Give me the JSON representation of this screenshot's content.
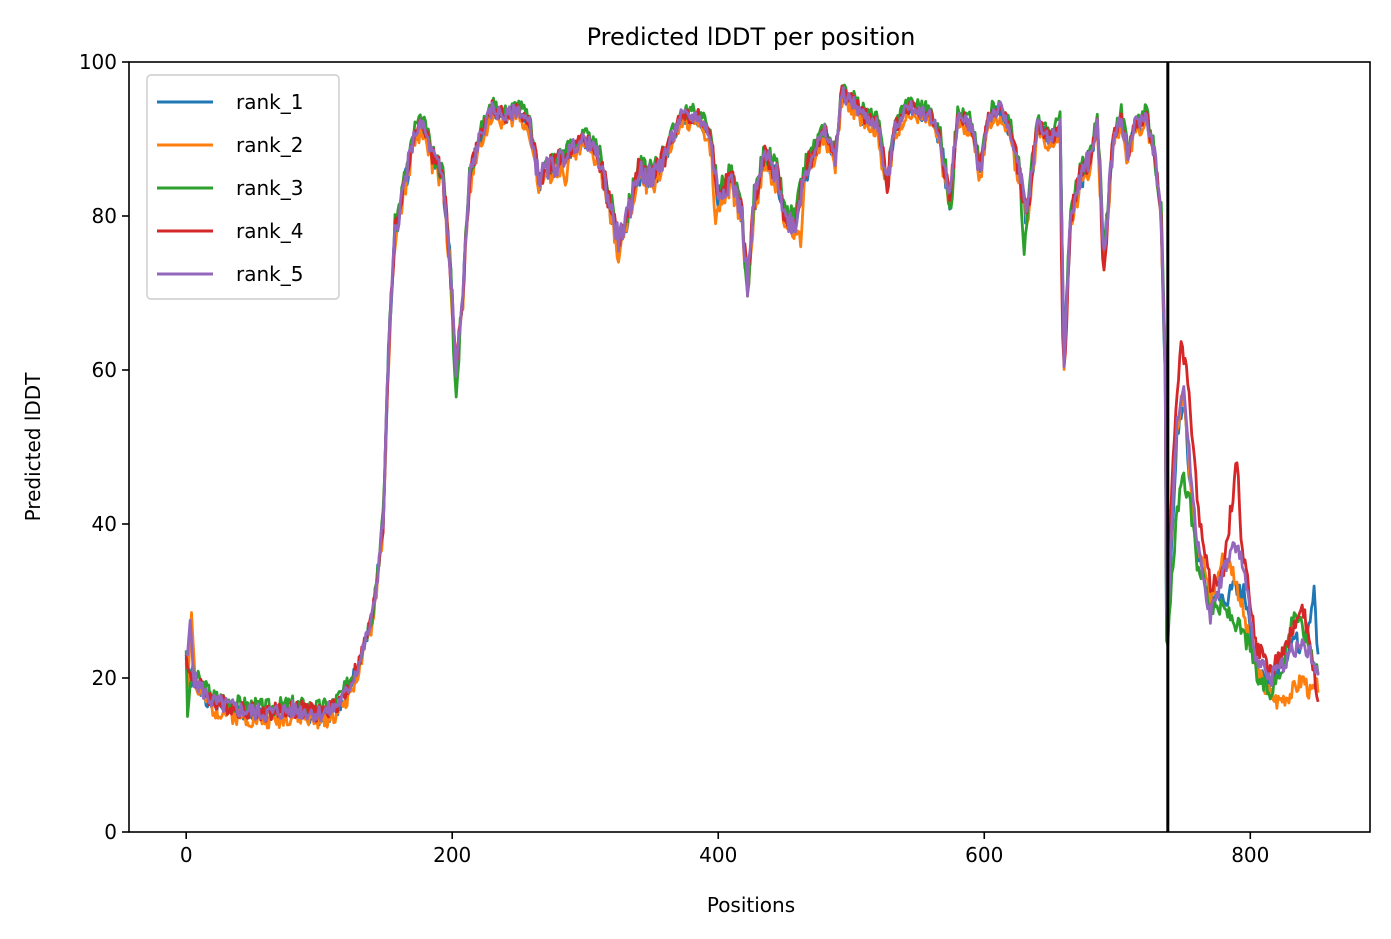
{
  "chart_data": {
    "type": "line",
    "title": "Predicted lDDT per position",
    "xlabel": "Positions",
    "ylabel": "Predicted lDDT",
    "xlim": [
      -43,
      890
    ],
    "ylim": [
      0,
      100
    ],
    "xticks": [
      0,
      200,
      400,
      600,
      800
    ],
    "yticks": [
      0,
      20,
      40,
      60,
      80,
      100
    ],
    "legend_position": "top-left",
    "grid": false,
    "chain_break_x": 738,
    "series": [
      {
        "name": "rank_1",
        "color": "#1f77b4",
        "offset": -0.4,
        "sharp": [],
        "seed": 1,
        "tail": [
          [
            738,
            25
          ],
          [
            741,
            38
          ],
          [
            745,
            52
          ],
          [
            750,
            56
          ],
          [
            755,
            45
          ],
          [
            760,
            37
          ],
          [
            765,
            33
          ],
          [
            770,
            30
          ],
          [
            780,
            30
          ],
          [
            790,
            32
          ],
          [
            795,
            31
          ],
          [
            800,
            26
          ],
          [
            805,
            21
          ],
          [
            815,
            20
          ],
          [
            825,
            22
          ],
          [
            833,
            25
          ],
          [
            840,
            24
          ],
          [
            845,
            27
          ],
          [
            848,
            31
          ],
          [
            851,
            22
          ]
        ]
      },
      {
        "name": "rank_2",
        "color": "#ff7f0e",
        "offset": -1.0,
        "sharp": [
          [
            4,
            28.5
          ],
          [
            285,
            84
          ],
          [
            325,
            74
          ],
          [
            398,
            79
          ],
          [
            462,
            76
          ]
        ],
        "seed": 2,
        "tail": [
          [
            738,
            30
          ],
          [
            741,
            40
          ],
          [
            745,
            53
          ],
          [
            750,
            57
          ],
          [
            755,
            46
          ],
          [
            760,
            38
          ],
          [
            765,
            35
          ],
          [
            770,
            30
          ],
          [
            780,
            36
          ],
          [
            787,
            34
          ],
          [
            793,
            30
          ],
          [
            800,
            24
          ],
          [
            810,
            19
          ],
          [
            820,
            17
          ],
          [
            830,
            18
          ],
          [
            840,
            20
          ],
          [
            845,
            18
          ],
          [
            851,
            19
          ]
        ]
      },
      {
        "name": "rank_3",
        "color": "#2ca02c",
        "offset": 0.6,
        "sharp": [
          [
            1,
            15
          ],
          [
            203,
            56.5
          ],
          [
            422,
            70
          ],
          [
            630,
            75
          ],
          [
            575,
            81
          ]
        ],
        "seed": 3,
        "tail": [
          [
            738,
            24
          ],
          [
            741,
            33
          ],
          [
            745,
            42
          ],
          [
            750,
            46
          ],
          [
            755,
            42
          ],
          [
            760,
            35
          ],
          [
            765,
            33
          ],
          [
            770,
            29
          ],
          [
            780,
            29
          ],
          [
            790,
            27
          ],
          [
            800,
            24
          ],
          [
            805,
            20
          ],
          [
            815,
            18
          ],
          [
            825,
            22
          ],
          [
            833,
            29
          ],
          [
            840,
            26
          ],
          [
            845,
            24
          ],
          [
            851,
            21
          ]
        ]
      },
      {
        "name": "rank_4",
        "color": "#d62728",
        "offset": 0.0,
        "sharp": [
          [
            660,
            60.5
          ],
          [
            690,
            73
          ]
        ],
        "seed": 4,
        "tail": [
          [
            738,
            32
          ],
          [
            741,
            45
          ],
          [
            745,
            58
          ],
          [
            748,
            63.5
          ],
          [
            752,
            60
          ],
          [
            757,
            50
          ],
          [
            762,
            40
          ],
          [
            770,
            32
          ],
          [
            780,
            34
          ],
          [
            787,
            44
          ],
          [
            790,
            49
          ],
          [
            793,
            38
          ],
          [
            800,
            30
          ],
          [
            805,
            24
          ],
          [
            815,
            21
          ],
          [
            825,
            23
          ],
          [
            833,
            27
          ],
          [
            840,
            29
          ],
          [
            845,
            24
          ],
          [
            851,
            17
          ]
        ]
      },
      {
        "name": "rank_5",
        "color": "#9467bd",
        "offset": -0.1,
        "sharp": [
          [
            3,
            27.5
          ]
        ],
        "seed": 5,
        "tail": [
          [
            738,
            28
          ],
          [
            741,
            41
          ],
          [
            745,
            54
          ],
          [
            750,
            58
          ],
          [
            755,
            47
          ],
          [
            760,
            38
          ],
          [
            765,
            33
          ],
          [
            770,
            28
          ],
          [
            780,
            34
          ],
          [
            787,
            37
          ],
          [
            793,
            36
          ],
          [
            800,
            28
          ],
          [
            805,
            22
          ],
          [
            815,
            20
          ],
          [
            825,
            22
          ],
          [
            833,
            24
          ],
          [
            840,
            24
          ],
          [
            845,
            23
          ],
          [
            851,
            20
          ]
        ]
      }
    ],
    "base_profile": [
      [
        0,
        21
      ],
      [
        5,
        20
      ],
      [
        20,
        17
      ],
      [
        40,
        16
      ],
      [
        60,
        15.5
      ],
      [
        80,
        16
      ],
      [
        100,
        15.5
      ],
      [
        110,
        16
      ],
      [
        120,
        18
      ],
      [
        130,
        22
      ],
      [
        140,
        28
      ],
      [
        148,
        40
      ],
      [
        152,
        62
      ],
      [
        157,
        78
      ],
      [
        165,
        85
      ],
      [
        172,
        91
      ],
      [
        178,
        92
      ],
      [
        185,
        88
      ],
      [
        193,
        85
      ],
      [
        198,
        75
      ],
      [
        203,
        60
      ],
      [
        208,
        70
      ],
      [
        213,
        85
      ],
      [
        220,
        90
      ],
      [
        230,
        94
      ],
      [
        240,
        93
      ],
      [
        250,
        94
      ],
      [
        258,
        92
      ],
      [
        265,
        85
      ],
      [
        270,
        86
      ],
      [
        280,
        87
      ],
      [
        290,
        89
      ],
      [
        300,
        90
      ],
      [
        310,
        88
      ],
      [
        318,
        82
      ],
      [
        325,
        77
      ],
      [
        332,
        80
      ],
      [
        340,
        86
      ],
      [
        350,
        85
      ],
      [
        360,
        88
      ],
      [
        372,
        93
      ],
      [
        385,
        93
      ],
      [
        393,
        91
      ],
      [
        400,
        83
      ],
      [
        410,
        85
      ],
      [
        418,
        80
      ],
      [
        422,
        71
      ],
      [
        427,
        82
      ],
      [
        435,
        88
      ],
      [
        445,
        85
      ],
      [
        450,
        80
      ],
      [
        458,
        79
      ],
      [
        464,
        85
      ],
      [
        470,
        88
      ],
      [
        480,
        91
      ],
      [
        488,
        88
      ],
      [
        493,
        96
      ],
      [
        500,
        95
      ],
      [
        510,
        93
      ],
      [
        520,
        92
      ],
      [
        527,
        84
      ],
      [
        532,
        91
      ],
      [
        540,
        94
      ],
      [
        550,
        94
      ],
      [
        560,
        93
      ],
      [
        567,
        90
      ],
      [
        574,
        82
      ],
      [
        580,
        93
      ],
      [
        590,
        92
      ],
      [
        597,
        86
      ],
      [
        603,
        93
      ],
      [
        612,
        94
      ],
      [
        620,
        91
      ],
      [
        627,
        85
      ],
      [
        632,
        80
      ],
      [
        640,
        92
      ],
      [
        650,
        90
      ],
      [
        657,
        92
      ],
      [
        660,
        62
      ],
      [
        665,
        80
      ],
      [
        672,
        85
      ],
      [
        680,
        88
      ],
      [
        685,
        92
      ],
      [
        690,
        75
      ],
      [
        697,
        90
      ],
      [
        703,
        93
      ],
      [
        708,
        88
      ],
      [
        713,
        92
      ],
      [
        722,
        93
      ],
      [
        728,
        88
      ],
      [
        733,
        80
      ],
      [
        736,
        60
      ],
      [
        738,
        45
      ]
    ]
  }
}
